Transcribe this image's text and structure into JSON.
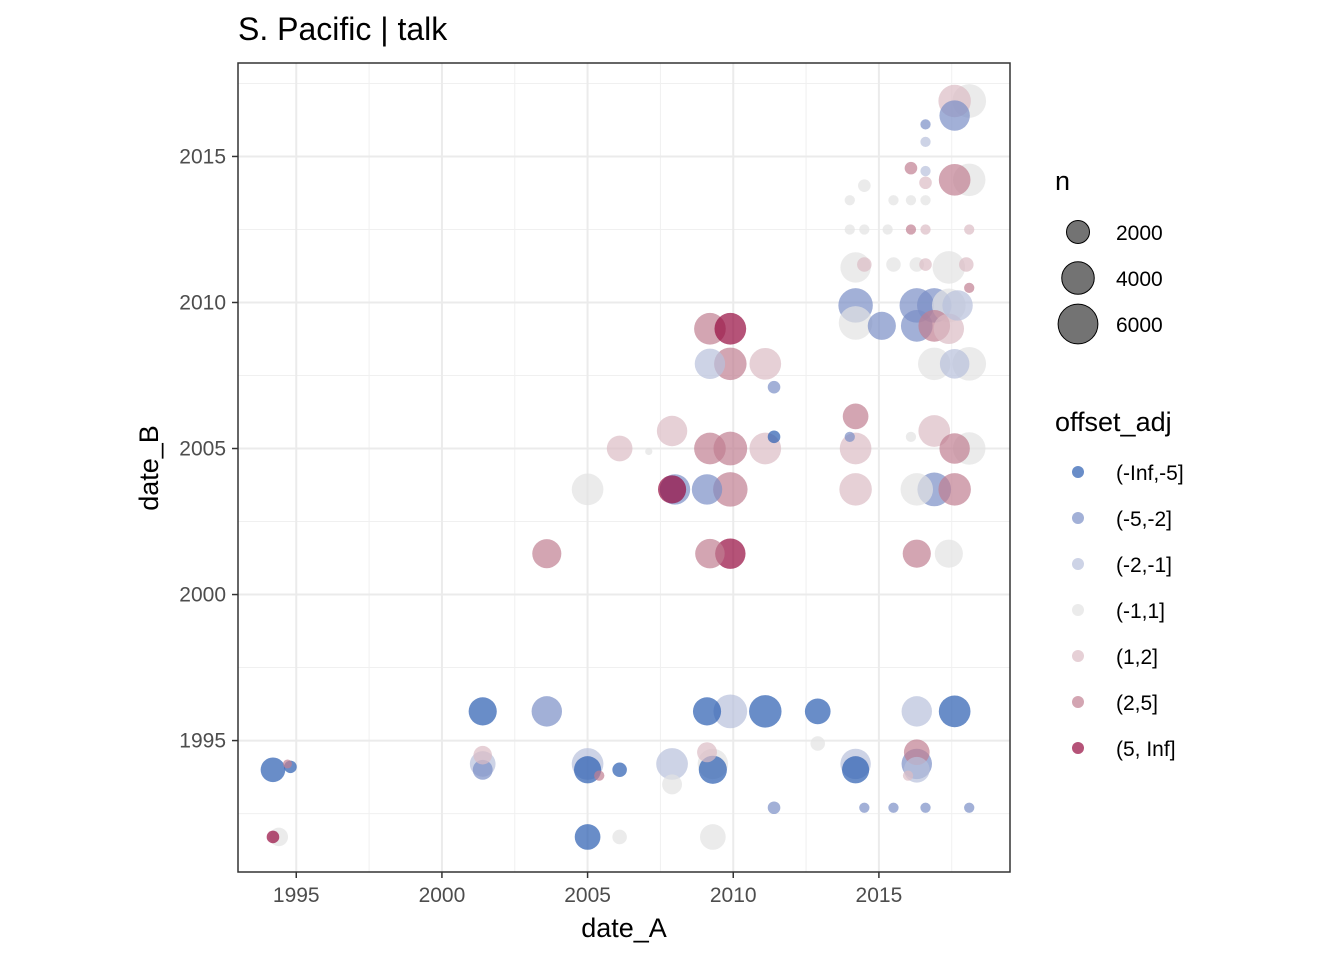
{
  "chart_data": {
    "type": "scatter",
    "title": "S. Pacific | talk",
    "xlabel": "date_A",
    "ylabel": "date_B",
    "xlim": [
      1993.0,
      2019.5
    ],
    "ylim": [
      1990.5,
      2018.2
    ],
    "x_ticks": [
      1995,
      2000,
      2005,
      2010,
      2015
    ],
    "y_ticks": [
      1995,
      2000,
      2005,
      2010,
      2015
    ],
    "size_legend": {
      "title": "n",
      "entries": [
        {
          "label": "2000",
          "value": 2000
        },
        {
          "label": "4000",
          "value": 4000
        },
        {
          "label": "6000",
          "value": 6000
        }
      ]
    },
    "color_legend": {
      "title": "offset_adj",
      "entries": [
        {
          "label": "(-Inf,-5]",
          "color": "#2a5db0"
        },
        {
          "label": "(-5,-2]",
          "color": "#7b8fc6"
        },
        {
          "label": "(-2,-1]",
          "color": "#b8c1db"
        },
        {
          "label": "(-1,1]",
          "color": "#e3e3e3"
        },
        {
          "label": "(1,2]",
          "color": "#dcbcc4"
        },
        {
          "label": "(2,5]",
          "color": "#c07f91"
        },
        {
          "label": "(5, Inf]",
          "color": "#950a3e"
        }
      ]
    },
    "points": [
      {
        "x": 1994.4,
        "y": 1991.7,
        "n": 1300,
        "c": "(-1,1]"
      },
      {
        "x": 1994.2,
        "y": 1991.7,
        "n": 600,
        "c": "(5, Inf]"
      },
      {
        "x": 1994.2,
        "y": 1994.0,
        "n": 2300,
        "c": "(-Inf,-5]"
      },
      {
        "x": 1994.7,
        "y": 1994.2,
        "n": 300,
        "c": "(2,5]"
      },
      {
        "x": 1994.8,
        "y": 1994.1,
        "n": 600,
        "c": "(-Inf,-5]"
      },
      {
        "x": 2001.4,
        "y": 1996.0,
        "n": 3000,
        "c": "(-Inf,-5]"
      },
      {
        "x": 2001.4,
        "y": 1994.5,
        "n": 1300,
        "c": "(1,2]"
      },
      {
        "x": 2001.4,
        "y": 1994.2,
        "n": 2500,
        "c": "(-2,-1]"
      },
      {
        "x": 2001.4,
        "y": 1994.0,
        "n": 1500,
        "c": "(-5,-2]"
      },
      {
        "x": 2003.6,
        "y": 1996.0,
        "n": 3500,
        "c": "(-5,-2]"
      },
      {
        "x": 2003.6,
        "y": 2001.4,
        "n": 3200,
        "c": "(2,5]"
      },
      {
        "x": 2005.0,
        "y": 1994.2,
        "n": 3800,
        "c": "(-2,-1]"
      },
      {
        "x": 2005.0,
        "y": 1994.0,
        "n": 2800,
        "c": "(-Inf,-5]"
      },
      {
        "x": 2005.4,
        "y": 1993.8,
        "n": 400,
        "c": "(2,5]"
      },
      {
        "x": 2006.1,
        "y": 1994.0,
        "n": 800,
        "c": "(-Inf,-5]"
      },
      {
        "x": 2005.0,
        "y": 1991.7,
        "n": 2500,
        "c": "(-Inf,-5]"
      },
      {
        "x": 2006.1,
        "y": 1991.7,
        "n": 800,
        "c": "(-1,1]"
      },
      {
        "x": 2005.0,
        "y": 2003.6,
        "n": 3800,
        "c": "(-1,1]"
      },
      {
        "x": 2006.1,
        "y": 2005.0,
        "n": 2500,
        "c": "(1,2]"
      },
      {
        "x": 2007.1,
        "y": 2004.9,
        "n": 200,
        "c": "(-1,1]"
      },
      {
        "x": 2007.9,
        "y": 2005.6,
        "n": 3500,
        "c": "(1,2]"
      },
      {
        "x": 2008.0,
        "y": 2003.6,
        "n": 3500,
        "c": "(-5,-2]"
      },
      {
        "x": 2007.9,
        "y": 2003.6,
        "n": 3000,
        "c": "(5, Inf]"
      },
      {
        "x": 2007.9,
        "y": 1994.2,
        "n": 3800,
        "c": "(-2,-1]"
      },
      {
        "x": 2007.9,
        "y": 1993.5,
        "n": 1500,
        "c": "(-1,1]"
      },
      {
        "x": 2009.1,
        "y": 1996.0,
        "n": 3000,
        "c": "(-Inf,-5]"
      },
      {
        "x": 2009.1,
        "y": 1994.6,
        "n": 1500,
        "c": "(1,2]"
      },
      {
        "x": 2009.3,
        "y": 1994.2,
        "n": 3500,
        "c": "(-1,1]"
      },
      {
        "x": 2009.3,
        "y": 1994.0,
        "n": 3000,
        "c": "(-Inf,-5]"
      },
      {
        "x": 2009.3,
        "y": 1991.7,
        "n": 2500,
        "c": "(-1,1]"
      },
      {
        "x": 2009.2,
        "y": 2001.4,
        "n": 3300,
        "c": "(2,5]"
      },
      {
        "x": 2009.9,
        "y": 2001.4,
        "n": 3500,
        "c": "(5, Inf]"
      },
      {
        "x": 2009.1,
        "y": 2003.6,
        "n": 3500,
        "c": "(-5,-2]"
      },
      {
        "x": 2009.9,
        "y": 2003.6,
        "n": 4500,
        "c": "(2,5]"
      },
      {
        "x": 2009.2,
        "y": 2005.0,
        "n": 3800,
        "c": "(2,5]"
      },
      {
        "x": 2009.9,
        "y": 2005.0,
        "n": 4300,
        "c": "(2,5]"
      },
      {
        "x": 2009.2,
        "y": 2007.9,
        "n": 3500,
        "c": "(-2,-1]"
      },
      {
        "x": 2009.9,
        "y": 2007.9,
        "n": 4000,
        "c": "(2,5]"
      },
      {
        "x": 2009.2,
        "y": 2009.1,
        "n": 3800,
        "c": "(2,5]"
      },
      {
        "x": 2009.9,
        "y": 2009.1,
        "n": 3800,
        "c": "(5, Inf]"
      },
      {
        "x": 2009.9,
        "y": 1996.0,
        "n": 4300,
        "c": "(-2,-1]"
      },
      {
        "x": 2011.1,
        "y": 1996.0,
        "n": 4000,
        "c": "(-Inf,-5]"
      },
      {
        "x": 2011.1,
        "y": 2005.0,
        "n": 3800,
        "c": "(1,2]"
      },
      {
        "x": 2011.1,
        "y": 2007.9,
        "n": 3800,
        "c": "(1,2]"
      },
      {
        "x": 2011.4,
        "y": 2007.1,
        "n": 600,
        "c": "(-5,-2]"
      },
      {
        "x": 2011.4,
        "y": 2005.4,
        "n": 600,
        "c": "(-Inf,-5]"
      },
      {
        "x": 2011.4,
        "y": 1992.7,
        "n": 600,
        "c": "(-5,-2]"
      },
      {
        "x": 2012.9,
        "y": 1996.0,
        "n": 2500,
        "c": "(-Inf,-5]"
      },
      {
        "x": 2012.9,
        "y": 1994.9,
        "n": 800,
        "c": "(-1,1]"
      },
      {
        "x": 2014.2,
        "y": 1994.2,
        "n": 3500,
        "c": "(-2,-1]"
      },
      {
        "x": 2014.2,
        "y": 1994.0,
        "n": 2800,
        "c": "(-Inf,-5]"
      },
      {
        "x": 2014.5,
        "y": 1992.7,
        "n": 400,
        "c": "(-5,-2]"
      },
      {
        "x": 2015.5,
        "y": 1992.7,
        "n": 400,
        "c": "(-5,-2]"
      },
      {
        "x": 2016.6,
        "y": 1992.7,
        "n": 400,
        "c": "(-5,-2]"
      },
      {
        "x": 2018.1,
        "y": 1992.7,
        "n": 400,
        "c": "(-5,-2]"
      },
      {
        "x": 2014.2,
        "y": 2003.6,
        "n": 4000,
        "c": "(1,2]"
      },
      {
        "x": 2014.2,
        "y": 2005.0,
        "n": 3800,
        "c": "(1,2]"
      },
      {
        "x": 2014.2,
        "y": 2006.1,
        "n": 2500,
        "c": "(2,5]"
      },
      {
        "x": 2014.0,
        "y": 2005.4,
        "n": 400,
        "c": "(-5,-2]"
      },
      {
        "x": 2014.2,
        "y": 2009.3,
        "n": 4300,
        "c": "(-1,1]"
      },
      {
        "x": 2014.2,
        "y": 2009.9,
        "n": 4500,
        "c": "(-5,-2]"
      },
      {
        "x": 2015.1,
        "y": 2009.2,
        "n": 3000,
        "c": "(-5,-2]"
      },
      {
        "x": 2014.2,
        "y": 2011.2,
        "n": 3500,
        "c": "(-1,1]"
      },
      {
        "x": 2014.5,
        "y": 2011.3,
        "n": 800,
        "c": "(1,2]"
      },
      {
        "x": 2014.0,
        "y": 2013.5,
        "n": 400,
        "c": "(-1,1]"
      },
      {
        "x": 2014.5,
        "y": 2014.0,
        "n": 600,
        "c": "(-1,1]"
      },
      {
        "x": 2014.0,
        "y": 2012.5,
        "n": 400,
        "c": "(-1,1]"
      },
      {
        "x": 2014.5,
        "y": 2012.5,
        "n": 400,
        "c": "(-1,1]"
      },
      {
        "x": 2015.5,
        "y": 2013.5,
        "n": 400,
        "c": "(-1,1]"
      },
      {
        "x": 2015.5,
        "y": 2011.3,
        "n": 800,
        "c": "(-1,1]"
      },
      {
        "x": 2016.1,
        "y": 2013.5,
        "n": 400,
        "c": "(-1,1]"
      },
      {
        "x": 2016.6,
        "y": 2013.5,
        "n": 400,
        "c": "(-1,1]"
      },
      {
        "x": 2016.1,
        "y": 2012.5,
        "n": 400,
        "c": "(2,5]"
      },
      {
        "x": 2015.3,
        "y": 2012.5,
        "n": 400,
        "c": "(-1,1]"
      },
      {
        "x": 2016.6,
        "y": 2012.5,
        "n": 400,
        "c": "(1,2]"
      },
      {
        "x": 2018.1,
        "y": 2012.5,
        "n": 400,
        "c": "(1,2]"
      },
      {
        "x": 2016.3,
        "y": 2011.3,
        "n": 800,
        "c": "(-1,1]"
      },
      {
        "x": 2016.6,
        "y": 2011.3,
        "n": 600,
        "c": "(1,2]"
      },
      {
        "x": 2017.4,
        "y": 2011.2,
        "n": 4000,
        "c": "(-1,1]"
      },
      {
        "x": 2018.0,
        "y": 2011.3,
        "n": 800,
        "c": "(1,2]"
      },
      {
        "x": 2018.1,
        "y": 2010.5,
        "n": 400,
        "c": "(2,5]"
      },
      {
        "x": 2016.1,
        "y": 2014.6,
        "n": 600,
        "c": "(2,5]"
      },
      {
        "x": 2016.6,
        "y": 2014.5,
        "n": 400,
        "c": "(-2,-1]"
      },
      {
        "x": 2016.6,
        "y": 2014.1,
        "n": 600,
        "c": "(1,2]"
      },
      {
        "x": 2017.6,
        "y": 2014.2,
        "n": 3800,
        "c": "(2,5]"
      },
      {
        "x": 2018.1,
        "y": 2014.2,
        "n": 4000,
        "c": "(-1,1]"
      },
      {
        "x": 2016.6,
        "y": 2016.1,
        "n": 400,
        "c": "(-5,-2]"
      },
      {
        "x": 2016.6,
        "y": 2015.5,
        "n": 400,
        "c": "(-2,-1]"
      },
      {
        "x": 2017.6,
        "y": 2016.4,
        "n": 3500,
        "c": "(-5,-2]"
      },
      {
        "x": 2017.6,
        "y": 2016.9,
        "n": 4000,
        "c": "(1,2]"
      },
      {
        "x": 2018.1,
        "y": 2016.9,
        "n": 4300,
        "c": "(-1,1]"
      },
      {
        "x": 2016.3,
        "y": 2009.9,
        "n": 4500,
        "c": "(-5,-2]"
      },
      {
        "x": 2016.3,
        "y": 2009.2,
        "n": 3800,
        "c": "(-5,-2]"
      },
      {
        "x": 2016.9,
        "y": 2009.9,
        "n": 4500,
        "c": "(-5,-2]"
      },
      {
        "x": 2016.9,
        "y": 2009.2,
        "n": 3800,
        "c": "(2,5]"
      },
      {
        "x": 2017.4,
        "y": 2009.9,
        "n": 4300,
        "c": "(-1,1]"
      },
      {
        "x": 2017.4,
        "y": 2009.1,
        "n": 3500,
        "c": "(1,2]"
      },
      {
        "x": 2017.7,
        "y": 2009.9,
        "n": 3500,
        "c": "(-2,-1]"
      },
      {
        "x": 2016.9,
        "y": 2007.9,
        "n": 4000,
        "c": "(-1,1]"
      },
      {
        "x": 2017.6,
        "y": 2007.9,
        "n": 3300,
        "c": "(-2,-1]"
      },
      {
        "x": 2018.1,
        "y": 2007.9,
        "n": 4300,
        "c": "(-1,1]"
      },
      {
        "x": 2016.1,
        "y": 2005.4,
        "n": 400,
        "c": "(-1,1]"
      },
      {
        "x": 2016.9,
        "y": 2005.6,
        "n": 3800,
        "c": "(1,2]"
      },
      {
        "x": 2017.6,
        "y": 2005.0,
        "n": 3500,
        "c": "(2,5]"
      },
      {
        "x": 2018.1,
        "y": 2005.0,
        "n": 4000,
        "c": "(-1,1]"
      },
      {
        "x": 2016.3,
        "y": 2003.6,
        "n": 4000,
        "c": "(-1,1]"
      },
      {
        "x": 2016.9,
        "y": 2003.6,
        "n": 4300,
        "c": "(-5,-2]"
      },
      {
        "x": 2017.6,
        "y": 2003.6,
        "n": 4000,
        "c": "(2,5]"
      },
      {
        "x": 2016.3,
        "y": 2001.4,
        "n": 3000,
        "c": "(2,5]"
      },
      {
        "x": 2017.4,
        "y": 2001.4,
        "n": 3000,
        "c": "(-1,1]"
      },
      {
        "x": 2016.3,
        "y": 1996.0,
        "n": 3500,
        "c": "(-2,-1]"
      },
      {
        "x": 2017.6,
        "y": 1996.0,
        "n": 3800,
        "c": "(-Inf,-5]"
      },
      {
        "x": 2016.3,
        "y": 1994.6,
        "n": 2500,
        "c": "(2,5]"
      },
      {
        "x": 2016.3,
        "y": 1994.2,
        "n": 3500,
        "c": "(-5,-2]"
      },
      {
        "x": 2016.3,
        "y": 1994.0,
        "n": 2500,
        "c": "(-2,-1]"
      },
      {
        "x": 2016.0,
        "y": 1993.8,
        "n": 400,
        "c": "(1,2]"
      }
    ]
  }
}
